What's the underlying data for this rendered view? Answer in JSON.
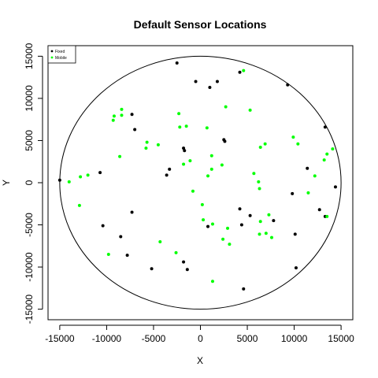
{
  "chart_data": {
    "type": "scatter",
    "title": "Default Sensor Locations",
    "xlabel": "X",
    "ylabel": "Y",
    "xlim": [
      -16250,
      16250
    ],
    "ylim": [
      -16250,
      16250
    ],
    "xticks": [
      -15000,
      -10000,
      -5000,
      0,
      5000,
      10000,
      15000
    ],
    "yticks": [
      -15000,
      -10000,
      -5000,
      0,
      5000,
      10000,
      15000
    ],
    "xtick_labels": [
      "-15000",
      "-10000",
      "-5000",
      "0",
      "5000",
      "10000",
      "15000"
    ],
    "ytick_labels": [
      "-15000",
      "-10000",
      "-5000",
      "0",
      "5000",
      "10000",
      "15000"
    ],
    "grid": false,
    "legend": {
      "position": "top-left",
      "entries": [
        "Fixed",
        "Mobile"
      ]
    },
    "boundary_circle": {
      "center": [
        0,
        0
      ],
      "radius": 15000
    },
    "series": [
      {
        "name": "Fixed",
        "color": "#000000",
        "points": [
          [
            -2500,
            14200
          ],
          [
            -500,
            12000
          ],
          [
            1000,
            11300
          ],
          [
            1800,
            12000
          ],
          [
            4200,
            13100
          ],
          [
            9300,
            11600
          ],
          [
            -7300,
            8100
          ],
          [
            -7000,
            6300
          ],
          [
            -1800,
            4100
          ],
          [
            -1700,
            3800
          ],
          [
            2500,
            5100
          ],
          [
            2600,
            4900
          ],
          [
            13300,
            6600
          ],
          [
            -3300,
            1600
          ],
          [
            -3600,
            900
          ],
          [
            -10700,
            1200
          ],
          [
            -15000,
            300
          ],
          [
            11400,
            1700
          ],
          [
            14400,
            -500
          ],
          [
            9800,
            -1300
          ],
          [
            12700,
            -3200
          ],
          [
            13300,
            -4000
          ],
          [
            -7300,
            -3500
          ],
          [
            -10400,
            -5100
          ],
          [
            -8500,
            -6400
          ],
          [
            -7800,
            -8600
          ],
          [
            -5200,
            -10200
          ],
          [
            -1800,
            -9400
          ],
          [
            -1400,
            -10300
          ],
          [
            800,
            -5200
          ],
          [
            4200,
            -3100
          ],
          [
            5300,
            -3900
          ],
          [
            4400,
            -5000
          ],
          [
            7800,
            -4500
          ],
          [
            10100,
            -6100
          ],
          [
            10200,
            -10100
          ],
          [
            4600,
            -12600
          ]
        ]
      },
      {
        "name": "Mobile",
        "color": "#00ff00",
        "points": [
          [
            4600,
            13300
          ],
          [
            2700,
            9000
          ],
          [
            5300,
            8600
          ],
          [
            -8400,
            8700
          ],
          [
            -9200,
            7900
          ],
          [
            -8400,
            8000
          ],
          [
            -9300,
            7400
          ],
          [
            -2300,
            8200
          ],
          [
            -2200,
            6600
          ],
          [
            -1500,
            6700
          ],
          [
            700,
            6500
          ],
          [
            -5700,
            4800
          ],
          [
            -5800,
            4100
          ],
          [
            -4500,
            4500
          ],
          [
            -8600,
            3100
          ],
          [
            -1800,
            2200
          ],
          [
            -1100,
            2600
          ],
          [
            1200,
            3200
          ],
          [
            1200,
            1600
          ],
          [
            2300,
            2100
          ],
          [
            800,
            800
          ],
          [
            -12800,
            700
          ],
          [
            -12000,
            900
          ],
          [
            -14000,
            100
          ],
          [
            -12900,
            -2700
          ],
          [
            -800,
            -1000
          ],
          [
            200,
            -2600
          ],
          [
            300,
            -4400
          ],
          [
            1300,
            -4900
          ],
          [
            5700,
            1100
          ],
          [
            6400,
            4200
          ],
          [
            6900,
            4600
          ],
          [
            9900,
            5400
          ],
          [
            10400,
            4600
          ],
          [
            6300,
            -700
          ],
          [
            6200,
            100
          ],
          [
            7300,
            -3800
          ],
          [
            6400,
            -4600
          ],
          [
            6300,
            -6100
          ],
          [
            7000,
            -6000
          ],
          [
            7600,
            -6500
          ],
          [
            11500,
            -1200
          ],
          [
            12200,
            800
          ],
          [
            13200,
            2700
          ],
          [
            13500,
            3400
          ],
          [
            14100,
            4000
          ],
          [
            13500,
            -4000
          ],
          [
            -9800,
            -8500
          ],
          [
            -4300,
            -7000
          ],
          [
            -2600,
            -8300
          ],
          [
            1300,
            -11700
          ],
          [
            2400,
            -6700
          ],
          [
            3100,
            -7300
          ],
          [
            2900,
            -5400
          ]
        ]
      }
    ]
  }
}
